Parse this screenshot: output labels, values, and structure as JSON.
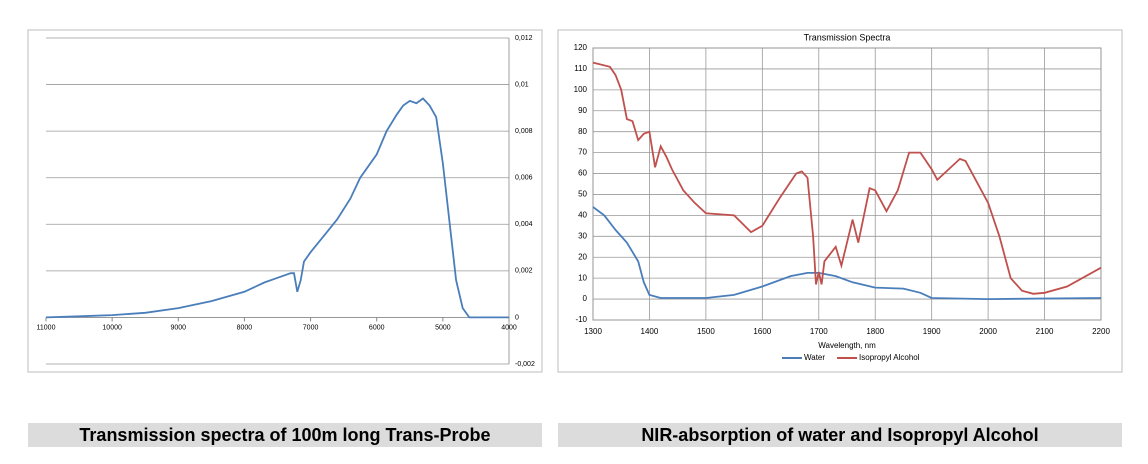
{
  "chart_data": [
    {
      "type": "line",
      "series": [
        {
          "color": "#4a7ebb",
          "x": [
            11000,
            10500,
            10000,
            9500,
            9000,
            8500,
            8000,
            7700,
            7500,
            7300,
            7250,
            7200,
            7150,
            7100,
            7000,
            6800,
            6600,
            6400,
            6250,
            6000,
            5850,
            5700,
            5600,
            5500,
            5400,
            5300,
            5200,
            5100,
            5000,
            4900,
            4800,
            4700,
            4600,
            4500,
            4000
          ],
          "values": [
            0,
            5e-05,
            0.0001,
            0.0002,
            0.0004,
            0.0007,
            0.0011,
            0.0015,
            0.0017,
            0.0019,
            0.0019,
            0.0011,
            0.0016,
            0.0024,
            0.0028,
            0.0035,
            0.0042,
            0.0051,
            0.006,
            0.007,
            0.008,
            0.0087,
            0.0091,
            0.0093,
            0.0092,
            0.0094,
            0.0091,
            0.0086,
            0.0066,
            0.0041,
            0.0016,
            0.0004,
            0,
            0,
            0
          ]
        }
      ],
      "xlim": [
        11000,
        4000
      ],
      "xticks": [
        11000,
        10000,
        9000,
        8000,
        7000,
        6000,
        5000,
        4000
      ],
      "ylim": [
        -0.002,
        0.012
      ],
      "yticks": [
        {
          "value": 0.012,
          "label": "0,012"
        },
        {
          "value": 0.01,
          "label": "0,01"
        },
        {
          "value": 0.008,
          "label": "0,008"
        },
        {
          "value": 0.006,
          "label": "0,006"
        },
        {
          "value": 0.004,
          "label": "0,004"
        },
        {
          "value": 0.002,
          "label": "0,002"
        },
        0,
        {
          "value": -0.002,
          "label": "-0,002"
        }
      ],
      "grid": true
    },
    {
      "type": "line",
      "title": "Transmission Spectra",
      "x_label": "Wavelength, nm",
      "series": [
        {
          "name": "Water",
          "color": "#4a7ebb",
          "x": [
            1300,
            1320,
            1340,
            1360,
            1380,
            1390,
            1400,
            1420,
            1500,
            1550,
            1600,
            1650,
            1680,
            1700,
            1730,
            1760,
            1800,
            1850,
            1880,
            1900,
            2000,
            2200
          ],
          "values": [
            44,
            40,
            33,
            27,
            18,
            8,
            2,
            0.5,
            0.5,
            2,
            6,
            11,
            12.5,
            12.5,
            11,
            8,
            5.5,
            5,
            3,
            0.5,
            0,
            0.5
          ]
        },
        {
          "name": "Isopropyl Alcohol",
          "color": "#c0504d",
          "x": [
            1300,
            1330,
            1340,
            1350,
            1360,
            1370,
            1380,
            1390,
            1400,
            1410,
            1420,
            1430,
            1440,
            1460,
            1480,
            1500,
            1550,
            1580,
            1600,
            1630,
            1660,
            1670,
            1680,
            1690,
            1695,
            1700,
            1705,
            1710,
            1730,
            1740,
            1760,
            1770,
            1790,
            1800,
            1820,
            1840,
            1860,
            1880,
            1900,
            1910,
            1930,
            1950,
            1960,
            1980,
            2000,
            2020,
            2040,
            2060,
            2080,
            2100,
            2140,
            2200
          ],
          "values": [
            113,
            111,
            107,
            100,
            86,
            85,
            76,
            79,
            80,
            63,
            73,
            68,
            62,
            52,
            46,
            41,
            40,
            32,
            35,
            48,
            60,
            61,
            58,
            30,
            7,
            13,
            7,
            18,
            25,
            16,
            38,
            27,
            53,
            52,
            42,
            52,
            70,
            70,
            62,
            57,
            62,
            67,
            66,
            56,
            46,
            30,
            10,
            4,
            2.5,
            3,
            6,
            15
          ]
        }
      ],
      "xlim": [
        1300,
        2200
      ],
      "xticks": [
        1300,
        1400,
        1500,
        1600,
        1700,
        1800,
        1900,
        2000,
        2100,
        2200
      ],
      "ylim": [
        -10,
        120
      ],
      "yticks": [
        -10,
        0,
        10,
        20,
        30,
        40,
        50,
        60,
        70,
        80,
        90,
        100,
        110,
        120
      ],
      "grid": true,
      "legend": "bottom"
    }
  ],
  "captions": [
    "Transmission spectra of 100m long Trans-Probe",
    "NIR-absorption of water and Isopropyl Alcohol"
  ]
}
